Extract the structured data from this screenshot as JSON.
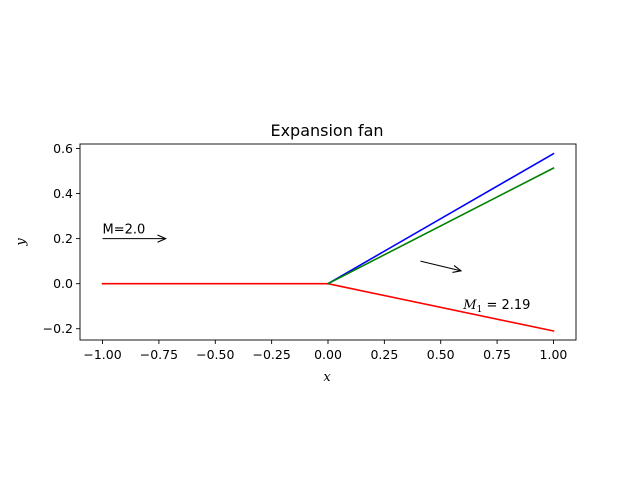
{
  "chart_data": {
    "type": "line",
    "title": "Expansion fan",
    "xlabel": "x",
    "ylabel": "y",
    "xlim": [
      -1.1,
      1.1
    ],
    "ylim": [
      -0.25,
      0.62
    ],
    "xticks": [
      -1.0,
      -0.75,
      -0.5,
      -0.25,
      0.0,
      0.25,
      0.5,
      0.75,
      1.0
    ],
    "xtick_labels": [
      "−1.00",
      "−0.75",
      "−0.50",
      "−0.25",
      "0.00",
      "0.25",
      "0.50",
      "0.75",
      "1.00"
    ],
    "yticks": [
      -0.2,
      0.0,
      0.2,
      0.4,
      0.6
    ],
    "ytick_labels": [
      "−0.2",
      "0.0",
      "0.2",
      "0.4",
      "0.6"
    ],
    "grid": false,
    "series": [
      {
        "color": "#ff0000",
        "x": [
          -1.0,
          0.0,
          1.0
        ],
        "y": [
          0.0,
          0.0,
          -0.21
        ]
      },
      {
        "color": "#0000ff",
        "x": [
          0.0,
          1.0
        ],
        "y": [
          0.0,
          0.577
        ]
      },
      {
        "color": "#008000",
        "x": [
          0.0,
          1.0
        ],
        "y": [
          0.0,
          0.513
        ]
      }
    ],
    "annotations": [
      {
        "text": "M=2.0",
        "x": -1.0,
        "y": 0.245,
        "arrow": {
          "from": [
            -1.0,
            0.2
          ],
          "to": [
            -0.72,
            0.2
          ]
        }
      },
      {
        "text_main": "M",
        "text_sub": "1",
        "text_rest": " = 2.19",
        "x": 0.6,
        "y": -0.09,
        "arrow": {
          "from": [
            0.41,
            0.1
          ],
          "to": [
            0.59,
            0.057
          ]
        }
      }
    ]
  }
}
